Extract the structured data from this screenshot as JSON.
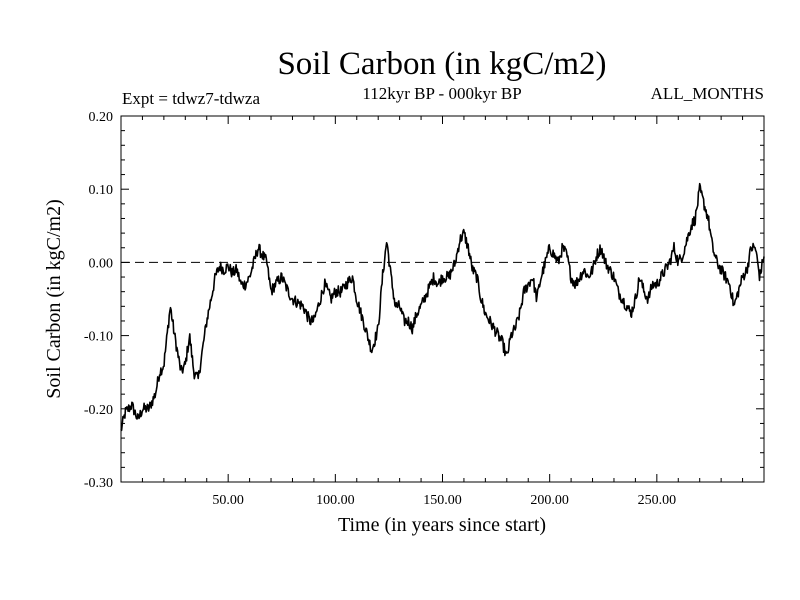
{
  "chart_data": {
    "type": "line",
    "title": "Soil Carbon (in kgC/m2)",
    "subtitle_left": "Expt = tdwz7-tdwza",
    "subtitle_center": "112kyr BP - 000kyr BP",
    "subtitle_right": "ALL_MONTHS",
    "xlabel": "Time (in years since start)",
    "ylabel": "Soil Carbon (in kgC/m2)",
    "xlim": [
      0,
      300
    ],
    "ylim": [
      -0.3,
      0.2
    ],
    "x_ticks": [
      50,
      100,
      150,
      200,
      250
    ],
    "x_tick_labels": [
      "50.00",
      "100.00",
      "150.00",
      "200.00",
      "250.00"
    ],
    "y_ticks": [
      0.2,
      0.1,
      0.0,
      -0.1,
      -0.2,
      -0.3
    ],
    "y_tick_labels": [
      "0.20",
      "0.10",
      "0.00",
      "-0.10",
      "-0.20",
      "-0.30"
    ],
    "reference_line": {
      "y": 0.0,
      "style": "dashed"
    },
    "grid": false,
    "series": [
      {
        "color": "#000000",
        "x": [
          0,
          2,
          5,
          8,
          10,
          13,
          16,
          18,
          20,
          23,
          25,
          28,
          30,
          32,
          34,
          36,
          38,
          40,
          42,
          44,
          46,
          48,
          50,
          52,
          54,
          56,
          58,
          60,
          62,
          64,
          66,
          68,
          70,
          72,
          75,
          78,
          80,
          85,
          88,
          90,
          93,
          95,
          98,
          100,
          103,
          105,
          108,
          110,
          112,
          115,
          117,
          120,
          122,
          124,
          126,
          128,
          130,
          132,
          134,
          136,
          138,
          140,
          143,
          146,
          148,
          150,
          153,
          156,
          158,
          160,
          162,
          164,
          166,
          168,
          170,
          172,
          174,
          176,
          178,
          180,
          182,
          184,
          186,
          188,
          190,
          192,
          194,
          196,
          198,
          200,
          202,
          204,
          206,
          208,
          210,
          212,
          214,
          216,
          218,
          220,
          222,
          224,
          226,
          228,
          230,
          232,
          234,
          236,
          238,
          240,
          242,
          244,
          246,
          248,
          250,
          252,
          254,
          256,
          258,
          260,
          262,
          264,
          266,
          268,
          270,
          272,
          274,
          276,
          278,
          280,
          282,
          284,
          286,
          288,
          290,
          292,
          294,
          296,
          298,
          300
        ],
        "y": [
          -0.23,
          -0.205,
          -0.195,
          -0.215,
          -0.2,
          -0.2,
          -0.18,
          -0.15,
          -0.14,
          -0.06,
          -0.1,
          -0.15,
          -0.14,
          -0.1,
          -0.15,
          -0.16,
          -0.12,
          -0.08,
          -0.05,
          -0.02,
          -0.005,
          -0.01,
          -0.005,
          -0.015,
          -0.01,
          -0.03,
          -0.03,
          -0.02,
          0.0,
          0.02,
          0.01,
          0.0,
          -0.04,
          -0.03,
          -0.02,
          -0.04,
          -0.05,
          -0.06,
          -0.08,
          -0.08,
          -0.05,
          -0.03,
          -0.05,
          -0.04,
          -0.04,
          -0.03,
          -0.02,
          -0.05,
          -0.07,
          -0.1,
          -0.12,
          -0.09,
          -0.02,
          0.03,
          -0.02,
          -0.06,
          -0.06,
          -0.08,
          -0.08,
          -0.09,
          -0.07,
          -0.06,
          -0.04,
          -0.02,
          -0.03,
          -0.02,
          -0.02,
          0.0,
          0.03,
          0.04,
          0.02,
          -0.01,
          -0.02,
          -0.05,
          -0.07,
          -0.08,
          -0.09,
          -0.1,
          -0.11,
          -0.13,
          -0.1,
          -0.09,
          -0.07,
          -0.04,
          -0.03,
          -0.02,
          -0.05,
          -0.02,
          0.0,
          0.02,
          0.01,
          0.0,
          0.02,
          0.01,
          -0.02,
          -0.03,
          -0.02,
          -0.01,
          -0.02,
          -0.01,
          0.01,
          0.02,
          0.0,
          -0.01,
          -0.02,
          -0.04,
          -0.05,
          -0.06,
          -0.07,
          -0.05,
          -0.02,
          -0.04,
          -0.05,
          -0.03,
          -0.03,
          -0.02,
          -0.01,
          0.0,
          0.02,
          0.0,
          0.01,
          0.03,
          0.05,
          0.06,
          0.1,
          0.08,
          0.06,
          0.02,
          0.0,
          -0.01,
          -0.02,
          -0.03,
          -0.06,
          -0.04,
          -0.02,
          -0.01,
          0.02,
          0.02,
          -0.02,
          0.01
        ]
      }
    ]
  }
}
